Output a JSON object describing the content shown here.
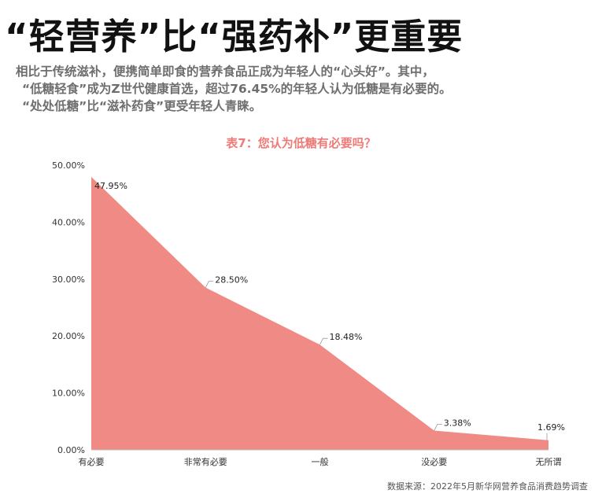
{
  "headline": "“轻营养”比“强药补”更重要",
  "intro": {
    "line1": "相比于传统滋补，便携简单即食的营养食品正成为年轻人的“心头好”。其中，",
    "line2": "“低糖轻食”成为Z世代健康首选，超过76.45%的年轻人认为低糖是有必要的。",
    "line3": "“处处低糖”比“滋补药食”更受年轻人青睐。"
  },
  "source": "数据来源：2022年5月新华网营养食品消费趋势调查",
  "colors": {
    "area": "#f08a84",
    "title": "#ee7b77"
  },
  "chart_data": {
    "type": "area",
    "title": "表7：您认为低糖有必要吗？",
    "categories": [
      "有必要",
      "非常有必要",
      "一般",
      "没必要",
      "无所谓"
    ],
    "values": [
      47.95,
      28.5,
      18.48,
      3.38,
      1.69
    ],
    "data_labels": [
      "47.95%",
      "28.50%",
      "18.48%",
      "3.38%",
      "1.69%"
    ],
    "y_ticks": [
      "0.00%",
      "10.00%",
      "20.00%",
      "30.00%",
      "40.00%",
      "50.00%"
    ],
    "ylim": [
      0,
      50
    ],
    "grid": false
  }
}
